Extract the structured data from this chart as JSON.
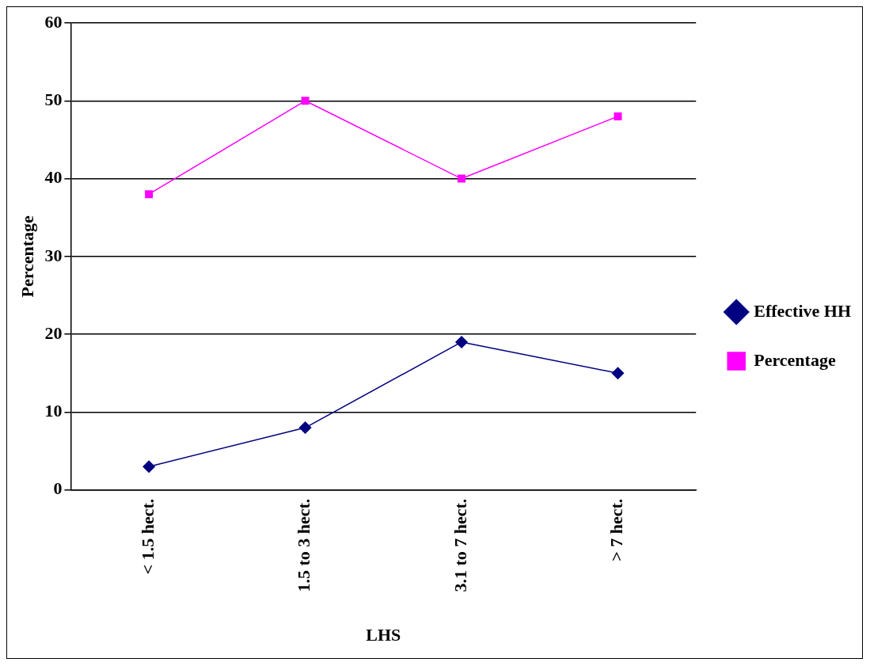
{
  "chart_data": {
    "type": "line",
    "xlabel": "LHS",
    "ylabel": "Percentage",
    "categories": [
      "< 1.5 hect.",
      "1.5 to 3 hect.",
      "3.1 to 7 hect.",
      "> 7 hect."
    ],
    "series": [
      {
        "name": "Effective HH",
        "color": "#000080",
        "marker": "diamond",
        "values": [
          3,
          8,
          19,
          15
        ]
      },
      {
        "name": "Percentage",
        "color": "#ff00ff",
        "marker": "square",
        "values": [
          38,
          50,
          40,
          48
        ]
      }
    ],
    "ylim": [
      0,
      60
    ],
    "yticks": [
      0,
      10,
      20,
      30,
      40,
      50,
      60
    ],
    "grid": "y",
    "legend": "right",
    "line_style": "solid"
  }
}
